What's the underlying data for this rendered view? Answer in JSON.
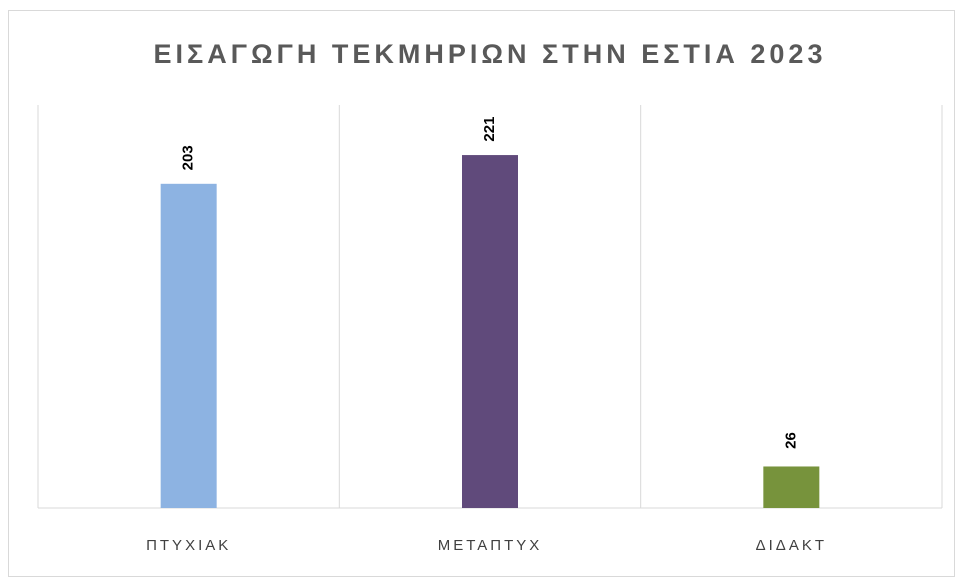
{
  "chart_data": {
    "type": "bar",
    "title": "ΕΙΣΑΓΩΓΗ ΤΕΚΜΗΡΙΩΝ ΣΤΗΝ ΕΣΤΙΑ 2023",
    "categories": [
      "ΠΤΥΧΙΑΚ",
      "ΜΕΤΑΠΤΥΧ",
      "ΔΙΔΑΚΤ"
    ],
    "values": [
      203,
      221,
      26
    ],
    "colors": [
      "#8db3e2",
      "#604a7b",
      "#77933c"
    ]
  }
}
